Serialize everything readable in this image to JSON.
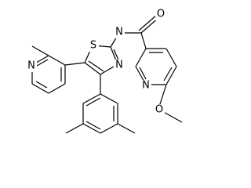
{
  "atoms": [
    {
      "label": "O"
    },
    {
      "label": "N"
    },
    {
      "label": "S"
    },
    {
      "label": "N"
    },
    {
      "label": "N"
    },
    {
      "label": "N"
    },
    {
      "label": "O"
    }
  ]
}
